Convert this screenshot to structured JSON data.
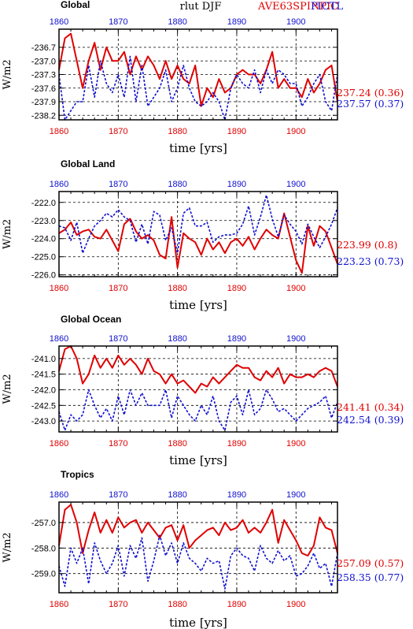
{
  "header": {
    "variable": "rlut DJF",
    "model_label": "AVE63SPINPIC",
    "ctl_label": "PICTL"
  },
  "colors": {
    "exp": "#e00000",
    "ctl": "#1010d0",
    "axis": "#000000",
    "grid": "#000000"
  },
  "chart_data": [
    {
      "type": "line",
      "title": "Global",
      "xlabel": "time [yrs]",
      "ylabel": "W/m2",
      "xlim": [
        1860,
        1907
      ],
      "ylim": [
        -238.3,
        -236.3
      ],
      "xticks": [
        1860,
        1870,
        1880,
        1890,
        1900
      ],
      "xtick_labels": [
        "1860",
        "1870",
        "1880",
        "1890",
        "1900"
      ],
      "top_xtick_labels": [
        "1860",
        "1870",
        "1880",
        "1890",
        "1900"
      ],
      "yticks": [
        -236.7,
        -237.0,
        -237.3,
        -237.6,
        -237.9,
        -238.2
      ],
      "ytick_labels": [
        "-236.7",
        "-237.0",
        "-237.3",
        "-237.6",
        "-237.9",
        "-238.2"
      ],
      "grid": true,
      "x": [
        1860,
        1861,
        1862,
        1863,
        1864,
        1865,
        1866,
        1867,
        1868,
        1869,
        1870,
        1871,
        1872,
        1873,
        1874,
        1875,
        1876,
        1877,
        1878,
        1879,
        1880,
        1881,
        1882,
        1883,
        1884,
        1885,
        1886,
        1887,
        1888,
        1889,
        1890,
        1891,
        1892,
        1893,
        1894,
        1895,
        1896,
        1897,
        1898,
        1899,
        1900,
        1901,
        1902,
        1903,
        1904,
        1905,
        1906,
        1907
      ],
      "series": [
        {
          "name": "AVE63SPINPIC",
          "style": "solid",
          "annotation": "237.24 (0.36)",
          "values": [
            -237.2,
            -236.5,
            -236.4,
            -237.0,
            -237.6,
            -237.0,
            -236.6,
            -237.2,
            -236.7,
            -237.0,
            -237.0,
            -236.8,
            -237.3,
            -236.9,
            -237.2,
            -236.9,
            -237.1,
            -237.4,
            -237.0,
            -237.4,
            -237.1,
            -237.4,
            -237.5,
            -237.1,
            -238.0,
            -237.6,
            -237.8,
            -237.4,
            -237.7,
            -237.6,
            -237.3,
            -237.2,
            -237.3,
            -237.3,
            -237.5,
            -237.2,
            -236.8,
            -237.6,
            -237.4,
            -237.6,
            -237.6,
            -237.8,
            -237.4,
            -237.7,
            -237.5,
            -237.2,
            -237.1,
            -237.9
          ]
        },
        {
          "name": "PICTL",
          "style": "dashed",
          "annotation": "237.57 (0.37)",
          "values": [
            -237.3,
            -238.3,
            -238.1,
            -237.9,
            -237.9,
            -237.1,
            -237.8,
            -237.0,
            -237.5,
            -237.7,
            -237.3,
            -237.8,
            -236.9,
            -237.9,
            -237.1,
            -238.0,
            -237.8,
            -237.6,
            -237.2,
            -237.9,
            -237.6,
            -237.1,
            -237.6,
            -237.9,
            -238.0,
            -237.9,
            -237.7,
            -237.9,
            -238.3,
            -237.6,
            -237.3,
            -237.5,
            -237.6,
            -237.2,
            -237.7,
            -237.2,
            -237.5,
            -237.2,
            -237.3,
            -237.5,
            -237.5,
            -238.0,
            -237.8,
            -237.5,
            -237.3,
            -237.9,
            -238.1,
            -237.3
          ]
        }
      ]
    },
    {
      "type": "line",
      "title": "Global Land",
      "xlabel": "time [yrs]",
      "ylabel": "W/m2",
      "xlim": [
        1860,
        1907
      ],
      "ylim": [
        -226.1,
        -221.4
      ],
      "xticks": [
        1860,
        1870,
        1880,
        1890,
        1900
      ],
      "xtick_labels": [
        "1860",
        "1870",
        "1880",
        "1890",
        "1900"
      ],
      "top_xtick_labels": [
        "1860",
        "1870",
        "1880",
        "1890",
        "1900"
      ],
      "yticks": [
        -222.0,
        -223.0,
        -224.0,
        -225.0,
        -226.0
      ],
      "ytick_labels": [
        "-222.0",
        "-223.0",
        "-224.0",
        "-225.0",
        "-226.0"
      ],
      "grid": true,
      "x": [
        1860,
        1861,
        1862,
        1863,
        1864,
        1865,
        1866,
        1867,
        1868,
        1869,
        1870,
        1871,
        1872,
        1873,
        1874,
        1875,
        1876,
        1877,
        1878,
        1879,
        1880,
        1881,
        1882,
        1883,
        1884,
        1885,
        1886,
        1887,
        1888,
        1889,
        1890,
        1891,
        1892,
        1893,
        1894,
        1895,
        1896,
        1897,
        1898,
        1899,
        1900,
        1901,
        1902,
        1903,
        1904,
        1905,
        1906,
        1907
      ],
      "series": [
        {
          "name": "AVE63SPINPIC",
          "style": "solid",
          "annotation": "223.99 (0.8)",
          "values": [
            -223.7,
            -223.5,
            -223.1,
            -223.8,
            -223.6,
            -223.5,
            -223.9,
            -224.0,
            -223.5,
            -224.1,
            -224.7,
            -223.2,
            -222.9,
            -223.6,
            -224.0,
            -223.8,
            -224.1,
            -224.9,
            -225.1,
            -222.8,
            -225.6,
            -223.7,
            -224.0,
            -224.2,
            -224.9,
            -224.0,
            -224.6,
            -224.2,
            -224.8,
            -224.2,
            -224.0,
            -224.4,
            -223.9,
            -224.6,
            -224.0,
            -223.5,
            -223.8,
            -224.0,
            -222.6,
            -223.9,
            -225.2,
            -225.9,
            -223.3,
            -224.4,
            -223.3,
            -223.6,
            -224.5,
            -225.4
          ]
        },
        {
          "name": "PICTL",
          "style": "dashed",
          "annotation": "223.23 (0.73)",
          "values": [
            -223.3,
            -223.4,
            -224.1,
            -223.1,
            -224.8,
            -224.0,
            -223.3,
            -223.0,
            -222.6,
            -222.8,
            -222.4,
            -222.8,
            -223.0,
            -224.2,
            -223.2,
            -224.3,
            -222.5,
            -222.7,
            -224.1,
            -223.4,
            -224.8,
            -222.6,
            -222.3,
            -223.3,
            -223.3,
            -223.1,
            -224.2,
            -223.9,
            -223.8,
            -223.8,
            -223.7,
            -223.2,
            -222.2,
            -223.8,
            -222.8,
            -221.6,
            -222.9,
            -223.9,
            -222.7,
            -223.2,
            -223.6,
            -224.3,
            -223.2,
            -223.9,
            -224.5,
            -223.9,
            -223.2,
            -222.3
          ]
        }
      ]
    },
    {
      "type": "line",
      "title": "Global Ocean",
      "xlabel": "time [yrs]",
      "ylabel": "W/m2",
      "xlim": [
        1860,
        1907
      ],
      "ylim": [
        -243.35,
        -240.6
      ],
      "xticks": [
        1860,
        1870,
        1880,
        1890,
        1900
      ],
      "xtick_labels": [
        "1860",
        "1870",
        "1880",
        "1890",
        "1900"
      ],
      "top_xtick_labels": [
        "1860",
        "1870",
        "1880",
        "1890",
        "1900"
      ],
      "yticks": [
        -241.0,
        -241.5,
        -242.0,
        -242.5,
        -243.0
      ],
      "ytick_labels": [
        "-241.0",
        "-241.5",
        "-242.0",
        "-242.5",
        "-243.0"
      ],
      "grid": true,
      "x": [
        1860,
        1861,
        1862,
        1863,
        1864,
        1865,
        1866,
        1867,
        1868,
        1869,
        1870,
        1871,
        1872,
        1873,
        1874,
        1875,
        1876,
        1877,
        1878,
        1879,
        1880,
        1881,
        1882,
        1883,
        1884,
        1885,
        1886,
        1887,
        1888,
        1889,
        1890,
        1891,
        1892,
        1893,
        1894,
        1895,
        1896,
        1897,
        1898,
        1899,
        1900,
        1901,
        1902,
        1903,
        1904,
        1905,
        1906,
        1907
      ],
      "series": [
        {
          "name": "AVE63SPINPIC",
          "style": "solid",
          "annotation": "241.41 (0.34)",
          "values": [
            -241.4,
            -240.7,
            -240.6,
            -241.0,
            -241.8,
            -241.5,
            -240.9,
            -241.3,
            -241.0,
            -241.3,
            -240.9,
            -241.2,
            -241.0,
            -241.2,
            -241.5,
            -241.0,
            -241.4,
            -241.5,
            -241.8,
            -241.5,
            -241.8,
            -241.7,
            -241.9,
            -242.1,
            -241.8,
            -241.9,
            -241.6,
            -241.8,
            -241.6,
            -241.4,
            -241.2,
            -241.3,
            -241.3,
            -241.6,
            -241.7,
            -241.4,
            -241.6,
            -241.3,
            -241.8,
            -241.5,
            -241.6,
            -241.6,
            -241.5,
            -241.6,
            -241.4,
            -241.3,
            -241.4,
            -241.9
          ]
        },
        {
          "name": "PICTL",
          "style": "dashed",
          "annotation": "242.54 (0.39)",
          "values": [
            -242.7,
            -243.3,
            -242.8,
            -243.0,
            -242.8,
            -242.0,
            -242.5,
            -242.9,
            -242.6,
            -243.0,
            -242.2,
            -242.8,
            -242.0,
            -242.5,
            -242.1,
            -242.5,
            -242.5,
            -242.5,
            -242.0,
            -242.9,
            -242.2,
            -242.5,
            -242.8,
            -243.0,
            -242.5,
            -242.8,
            -242.2,
            -243.0,
            -243.3,
            -242.4,
            -242.2,
            -242.8,
            -242.0,
            -242.8,
            -242.6,
            -242.0,
            -242.3,
            -242.7,
            -242.6,
            -242.8,
            -243.0,
            -242.8,
            -242.6,
            -242.5,
            -242.4,
            -242.2,
            -242.9,
            -242.4
          ]
        }
      ]
    },
    {
      "type": "line",
      "title": "Tropics",
      "xlabel": "time [yrs]",
      "ylabel": "W/m2",
      "xlim": [
        1860,
        1907
      ],
      "ylim": [
        -259.75,
        -256.2
      ],
      "xticks": [
        1860,
        1870,
        1880,
        1890,
        1900
      ],
      "xtick_labels": [
        "1860",
        "1870",
        "1880",
        "1890",
        "1900"
      ],
      "top_xtick_labels": [
        "1860",
        "1870",
        "1880",
        "1890",
        "1900"
      ],
      "yticks": [
        -257.0,
        -258.0,
        -259.0
      ],
      "ytick_labels": [
        "-257.0",
        "-258.0",
        "-259.0"
      ],
      "grid": true,
      "x": [
        1860,
        1861,
        1862,
        1863,
        1864,
        1865,
        1866,
        1867,
        1868,
        1869,
        1870,
        1871,
        1872,
        1873,
        1874,
        1875,
        1876,
        1877,
        1878,
        1879,
        1880,
        1881,
        1882,
        1883,
        1884,
        1885,
        1886,
        1887,
        1888,
        1889,
        1890,
        1891,
        1892,
        1893,
        1894,
        1895,
        1896,
        1897,
        1898,
        1899,
        1900,
        1901,
        1902,
        1903,
        1904,
        1905,
        1906,
        1907
      ],
      "series": [
        {
          "name": "AVE63SPINPIC",
          "style": "solid",
          "annotation": "257.09 (0.57)",
          "values": [
            -257.9,
            -256.5,
            -256.3,
            -257.0,
            -258.2,
            -257.3,
            -256.6,
            -257.4,
            -256.9,
            -257.4,
            -256.8,
            -257.2,
            -257.0,
            -256.9,
            -257.4,
            -257.0,
            -257.3,
            -257.6,
            -257.2,
            -257.1,
            -257.7,
            -257.1,
            -258.0,
            -257.7,
            -257.5,
            -257.3,
            -257.2,
            -257.5,
            -257.0,
            -257.3,
            -257.2,
            -256.9,
            -257.4,
            -257.2,
            -257.4,
            -257.0,
            -256.5,
            -257.8,
            -256.9,
            -257.3,
            -257.7,
            -258.2,
            -258.3,
            -257.9,
            -256.8,
            -257.2,
            -257.3,
            -258.2
          ]
        },
        {
          "name": "PICTL",
          "style": "dashed",
          "annotation": "258.35 (0.77)",
          "values": [
            -258.7,
            -259.5,
            -258.0,
            -258.6,
            -258.0,
            -259.4,
            -257.8,
            -258.5,
            -259.0,
            -258.6,
            -257.9,
            -259.1,
            -257.9,
            -258.4,
            -257.6,
            -259.3,
            -258.5,
            -257.5,
            -258.3,
            -257.8,
            -258.6,
            -257.8,
            -258.4,
            -258.6,
            -258.9,
            -258.4,
            -258.6,
            -258.5,
            -259.6,
            -258.3,
            -258.0,
            -258.3,
            -258.4,
            -258.9,
            -257.9,
            -258.4,
            -258.6,
            -258.1,
            -258.5,
            -258.3,
            -259.1,
            -259.0,
            -258.7,
            -258.2,
            -258.8,
            -258.6,
            -259.5,
            -258.2
          ]
        }
      ]
    }
  ]
}
